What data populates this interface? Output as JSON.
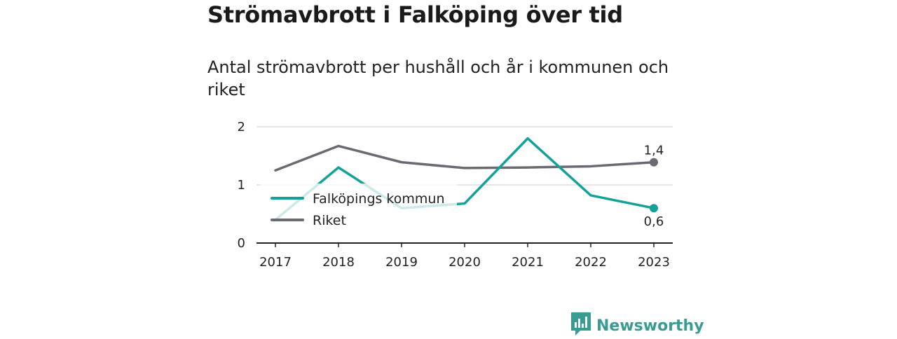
{
  "title": "Strömavbrott i Falköping över tid",
  "subtitle": "Antal strömavbrott per hushåll och år i kommunen och riket",
  "brand": {
    "name": "Newsworthy",
    "icon": "chart-bubble-icon"
  },
  "colors": {
    "falkoping": "#14a197",
    "riket": "#6b6a72",
    "grid": "#dddddd",
    "axis": "#222222"
  },
  "chart_data": {
    "type": "line",
    "x": [
      "2017",
      "2018",
      "2019",
      "2020",
      "2021",
      "2022",
      "2023"
    ],
    "ylim": [
      0,
      2
    ],
    "yticks": [
      "0",
      "1",
      "2"
    ],
    "grid": true,
    "legend_position": "lower-left",
    "series": [
      {
        "name": "Falköpings kommun",
        "values": [
          0.4,
          1.3,
          0.6,
          0.68,
          1.8,
          0.82,
          0.6
        ],
        "end_label": "0,6"
      },
      {
        "name": "Riket",
        "values": [
          1.25,
          1.67,
          1.39,
          1.29,
          1.3,
          1.32,
          1.39
        ],
        "end_label": "1,4"
      }
    ]
  }
}
